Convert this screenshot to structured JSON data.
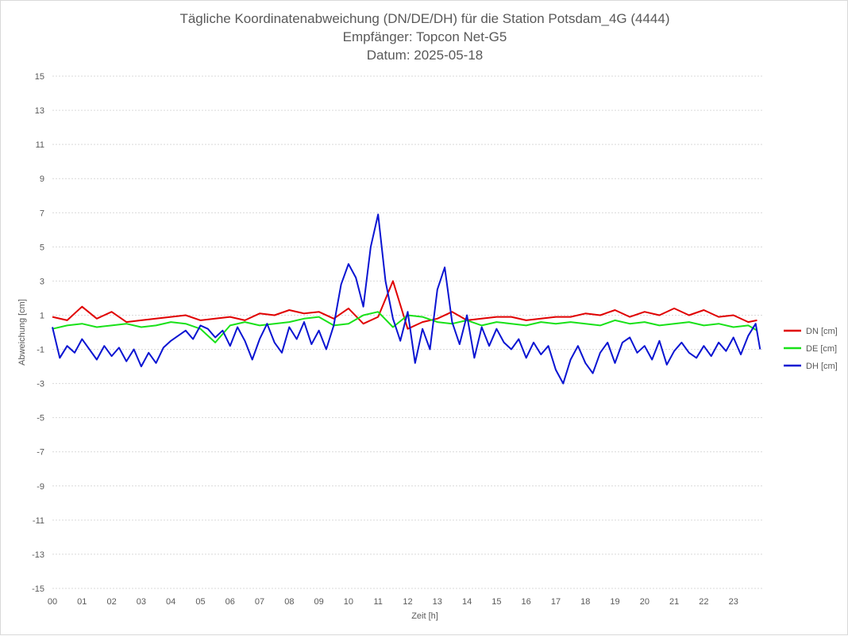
{
  "chart_data": {
    "type": "line",
    "title_lines": [
      "Tägliche Koordinatenabweichung (DN/DE/DH) für die Station Potsdam_4G (4444)",
      "Empfänger: Topcon Net-G5",
      "Datum: 2025-05-18"
    ],
    "xlabel": "Zeit [h]",
    "ylabel": "Abweichung [cm]",
    "ylim": [
      -15,
      15
    ],
    "yticks": [
      15,
      13,
      11,
      9,
      7,
      5,
      3,
      1,
      -1,
      -3,
      -5,
      -7,
      -9,
      -11,
      -13,
      -15
    ],
    "xlim": [
      0,
      24
    ],
    "xticks": [
      "00",
      "01",
      "02",
      "03",
      "04",
      "05",
      "06",
      "07",
      "08",
      "09",
      "10",
      "11",
      "12",
      "13",
      "14",
      "15",
      "16",
      "17",
      "18",
      "19",
      "20",
      "21",
      "22",
      "23"
    ],
    "grid": true,
    "legend_position": "right",
    "series": [
      {
        "name": "DN [cm]",
        "color": "#e00000",
        "x": [
          0.0,
          0.5,
          1.0,
          1.5,
          2.0,
          2.5,
          3.0,
          3.5,
          4.0,
          4.5,
          5.0,
          5.5,
          6.0,
          6.5,
          7.0,
          7.5,
          8.0,
          8.5,
          9.0,
          9.5,
          10.0,
          10.5,
          11.0,
          11.5,
          12.0,
          12.5,
          13.0,
          13.5,
          14.0,
          14.5,
          15.0,
          15.5,
          16.0,
          16.5,
          17.0,
          17.5,
          18.0,
          18.5,
          19.0,
          19.5,
          20.0,
          20.5,
          21.0,
          21.5,
          22.0,
          22.5,
          23.0,
          23.5,
          23.8
        ],
        "y": [
          0.9,
          0.7,
          1.5,
          0.8,
          1.2,
          0.6,
          0.7,
          0.8,
          0.9,
          1.0,
          0.7,
          0.8,
          0.9,
          0.7,
          1.1,
          1.0,
          1.3,
          1.1,
          1.2,
          0.8,
          1.4,
          0.5,
          0.9,
          3.0,
          0.2,
          0.6,
          0.8,
          1.2,
          0.7,
          0.8,
          0.9,
          0.9,
          0.7,
          0.8,
          0.9,
          0.9,
          1.1,
          1.0,
          1.3,
          0.9,
          1.2,
          1.0,
          1.4,
          1.0,
          1.3,
          0.9,
          1.0,
          0.6,
          0.7
        ]
      },
      {
        "name": "DE [cm]",
        "color": "#19e119",
        "x": [
          0.0,
          0.5,
          1.0,
          1.5,
          2.0,
          2.5,
          3.0,
          3.5,
          4.0,
          4.5,
          5.0,
          5.5,
          6.0,
          6.5,
          7.0,
          7.5,
          8.0,
          8.5,
          9.0,
          9.5,
          10.0,
          10.5,
          11.0,
          11.5,
          12.0,
          12.5,
          13.0,
          13.5,
          14.0,
          14.5,
          15.0,
          15.5,
          16.0,
          16.5,
          17.0,
          17.5,
          18.0,
          18.5,
          19.0,
          19.5,
          20.0,
          20.5,
          21.0,
          21.5,
          22.0,
          22.5,
          23.0,
          23.5,
          23.8
        ],
        "y": [
          0.2,
          0.4,
          0.5,
          0.3,
          0.4,
          0.5,
          0.3,
          0.4,
          0.6,
          0.5,
          0.2,
          -0.6,
          0.4,
          0.6,
          0.4,
          0.5,
          0.6,
          0.8,
          0.9,
          0.4,
          0.5,
          1.0,
          1.2,
          0.3,
          1.0,
          0.9,
          0.6,
          0.5,
          0.7,
          0.4,
          0.6,
          0.5,
          0.4,
          0.6,
          0.5,
          0.6,
          0.5,
          0.4,
          0.7,
          0.5,
          0.6,
          0.4,
          0.5,
          0.6,
          0.4,
          0.5,
          0.3,
          0.4,
          0.1
        ]
      },
      {
        "name": "DH [cm]",
        "color": "#0a14d2",
        "x": [
          0.0,
          0.25,
          0.5,
          0.75,
          1.0,
          1.25,
          1.5,
          1.75,
          2.0,
          2.25,
          2.5,
          2.75,
          3.0,
          3.25,
          3.5,
          3.75,
          4.0,
          4.25,
          4.5,
          4.75,
          5.0,
          5.25,
          5.5,
          5.75,
          6.0,
          6.25,
          6.5,
          6.75,
          7.0,
          7.25,
          7.5,
          7.75,
          8.0,
          8.25,
          8.5,
          8.75,
          9.0,
          9.25,
          9.5,
          9.75,
          10.0,
          10.25,
          10.5,
          10.75,
          11.0,
          11.25,
          11.5,
          11.75,
          12.0,
          12.25,
          12.5,
          12.75,
          13.0,
          13.25,
          13.5,
          13.75,
          14.0,
          14.25,
          14.5,
          14.75,
          15.0,
          15.25,
          15.5,
          15.75,
          16.0,
          16.25,
          16.5,
          16.75,
          17.0,
          17.25,
          17.5,
          17.75,
          18.0,
          18.25,
          18.5,
          18.75,
          19.0,
          19.25,
          19.5,
          19.75,
          20.0,
          20.25,
          20.5,
          20.75,
          21.0,
          21.25,
          21.5,
          21.75,
          22.0,
          22.25,
          22.5,
          22.75,
          23.0,
          23.25,
          23.5,
          23.75,
          23.9
        ],
        "y": [
          0.3,
          -1.5,
          -0.8,
          -1.2,
          -0.4,
          -1.0,
          -1.6,
          -0.8,
          -1.4,
          -0.9,
          -1.7,
          -1.0,
          -2.0,
          -1.2,
          -1.8,
          -0.9,
          -0.5,
          -0.2,
          0.1,
          -0.4,
          0.4,
          0.2,
          -0.3,
          0.1,
          -0.8,
          0.3,
          -0.5,
          -1.6,
          -0.4,
          0.5,
          -0.6,
          -1.2,
          0.3,
          -0.4,
          0.6,
          -0.7,
          0.1,
          -1.0,
          0.4,
          2.8,
          4.0,
          3.2,
          1.5,
          5.0,
          6.9,
          3.0,
          0.8,
          -0.5,
          1.2,
          -1.8,
          0.2,
          -1.0,
          2.5,
          3.8,
          0.6,
          -0.7,
          1.0,
          -1.5,
          0.3,
          -0.8,
          0.2,
          -0.6,
          -1.0,
          -0.4,
          -1.5,
          -0.6,
          -1.3,
          -0.8,
          -2.2,
          -3.0,
          -1.6,
          -0.8,
          -1.8,
          -2.4,
          -1.2,
          -0.6,
          -1.8,
          -0.6,
          -0.3,
          -1.2,
          -0.8,
          -1.6,
          -0.5,
          -1.9,
          -1.1,
          -0.6,
          -1.2,
          -1.5,
          -0.8,
          -1.4,
          -0.6,
          -1.1,
          -0.3,
          -1.3,
          -0.2,
          0.5,
          -1.0
        ]
      }
    ]
  }
}
